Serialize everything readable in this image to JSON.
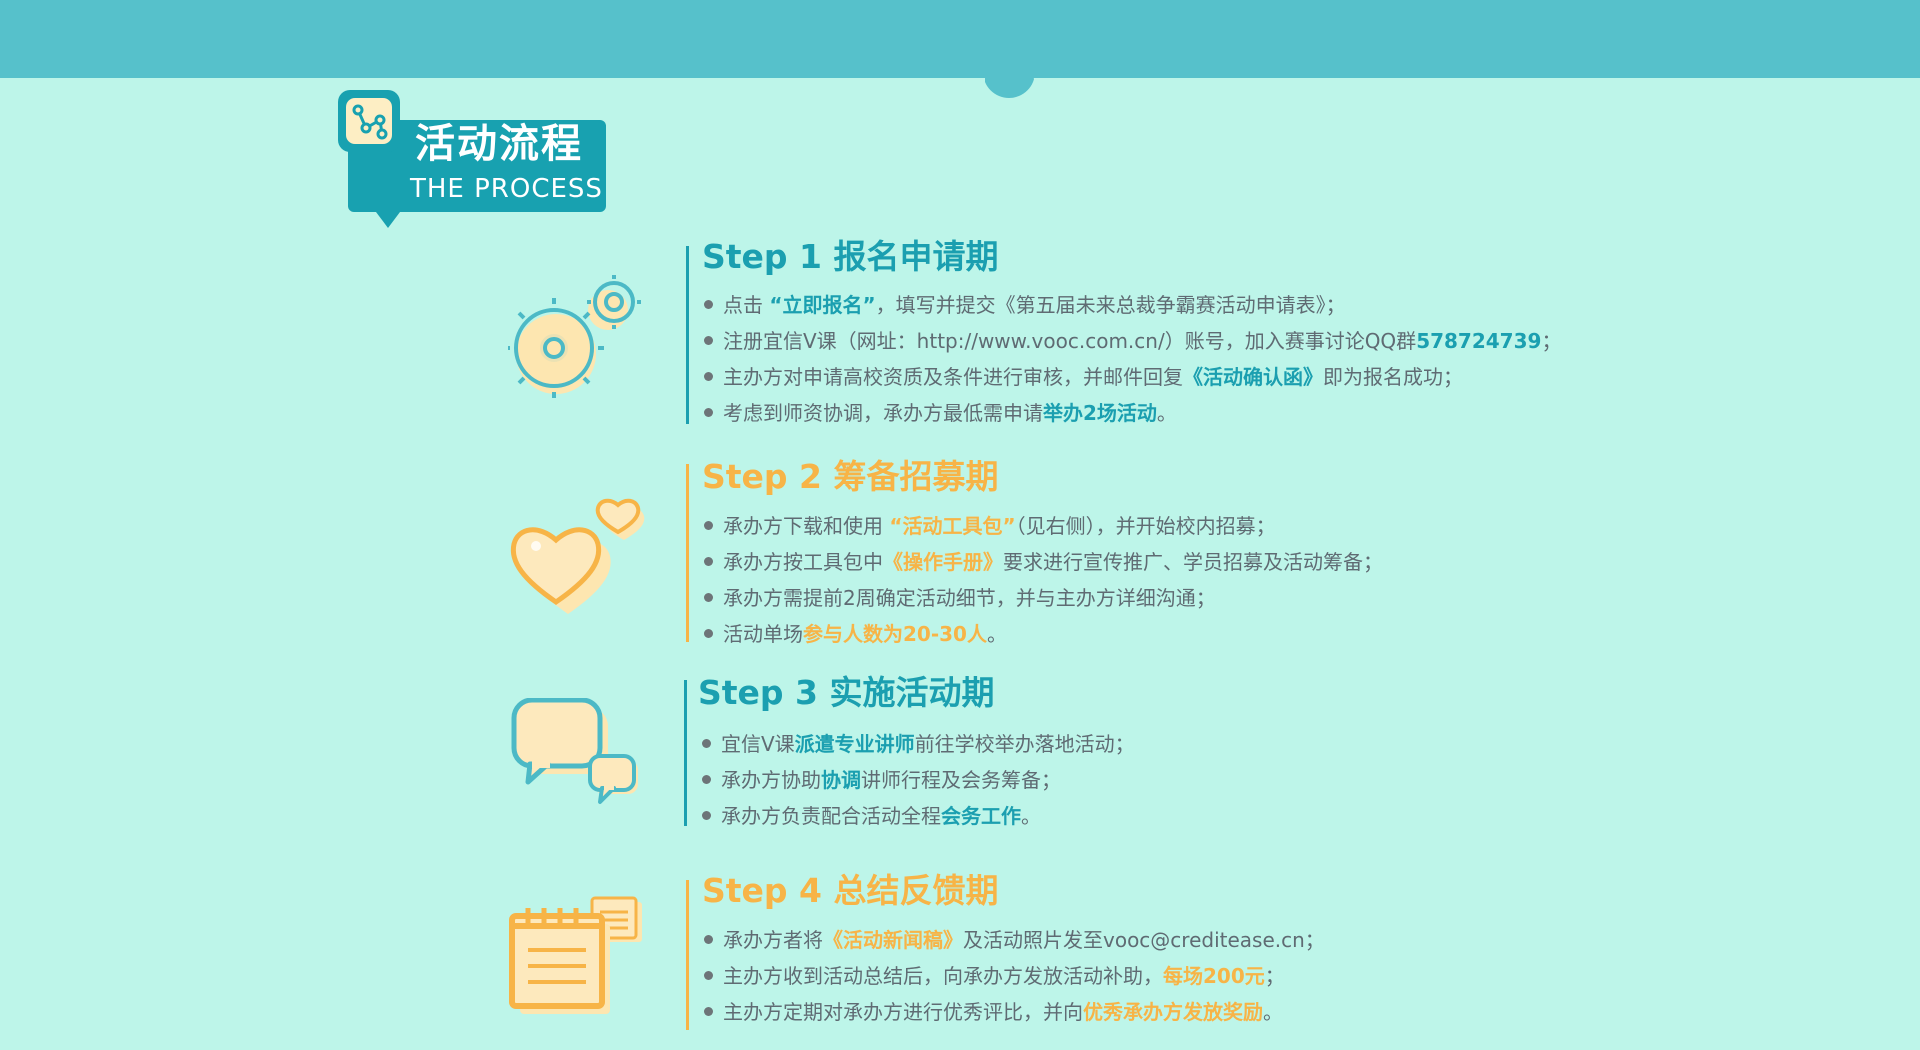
{
  "colors": {
    "teal": "#1b9fb0",
    "orange": "#f7b447",
    "background": "#bdf5e9",
    "header": "#56c1cb"
  },
  "badge": {
    "title": "活动流程",
    "subtitle": "THE PROCESS",
    "icon": "process-nodes-icon"
  },
  "steps": [
    {
      "title": "Step 1 报名申请期",
      "icon": "gears-icon",
      "bullets": [
        {
          "parts": [
            "点击 ",
            "“立即报名”",
            "，填写并提交《第五届未来总裁争霸赛活动申请表》；"
          ]
        },
        {
          "parts": [
            "注册宜信V课（网址：http://www.vooc.com.cn/）账号，加入赛事讨论QQ群",
            "578724739",
            "；"
          ]
        },
        {
          "parts": [
            "主办方对申请高校资质及条件进行审核，并邮件回复",
            "《活动确认函》",
            "即为报名成功；"
          ]
        },
        {
          "parts": [
            "考虑到师资协调，承办方最低需申请",
            "举办2场活动",
            "。"
          ]
        }
      ]
    },
    {
      "title": "Step 2 筹备招募期",
      "icon": "hearts-icon",
      "bullets": [
        {
          "parts": [
            "承办方下载和使用 ",
            "“活动工具包”",
            "（见右侧），并开始校内招募；"
          ]
        },
        {
          "parts": [
            "承办方按工具包中",
            "《操作手册》",
            "要求进行宣传推广、学员招募及活动筹备；"
          ]
        },
        {
          "parts": [
            "承办方需提前2周确定活动细节，并与主办方详细沟通；"
          ]
        },
        {
          "parts": [
            "活动单场",
            "参与人数为20-30人",
            "。"
          ]
        }
      ]
    },
    {
      "title": "Step 3 实施活动期",
      "icon": "chat-bubbles-icon",
      "bullets": [
        {
          "parts": [
            "宜信V课",
            "派遣专业讲师",
            "前往学校举办落地活动；"
          ]
        },
        {
          "parts": [
            "承办方协助",
            "协调",
            "讲师行程及会务筹备；"
          ]
        },
        {
          "parts": [
            "承办方负责配合活动全程",
            "会务工作",
            "。"
          ]
        }
      ]
    },
    {
      "title": "Step 4 总结反馈期",
      "icon": "notepad-icon",
      "bullets": [
        {
          "parts": [
            "承办方者将",
            "《活动新闻稿》",
            "及活动照片发至vooc@creditease.cn；"
          ]
        },
        {
          "parts": [
            "主办方收到活动总结后，向承办方发放活动补助，",
            "每场200元",
            "；"
          ]
        },
        {
          "parts": [
            "主办方定期对承办方进行优秀评比，并向",
            "优秀承办方发放奖励",
            "。"
          ]
        }
      ]
    }
  ]
}
